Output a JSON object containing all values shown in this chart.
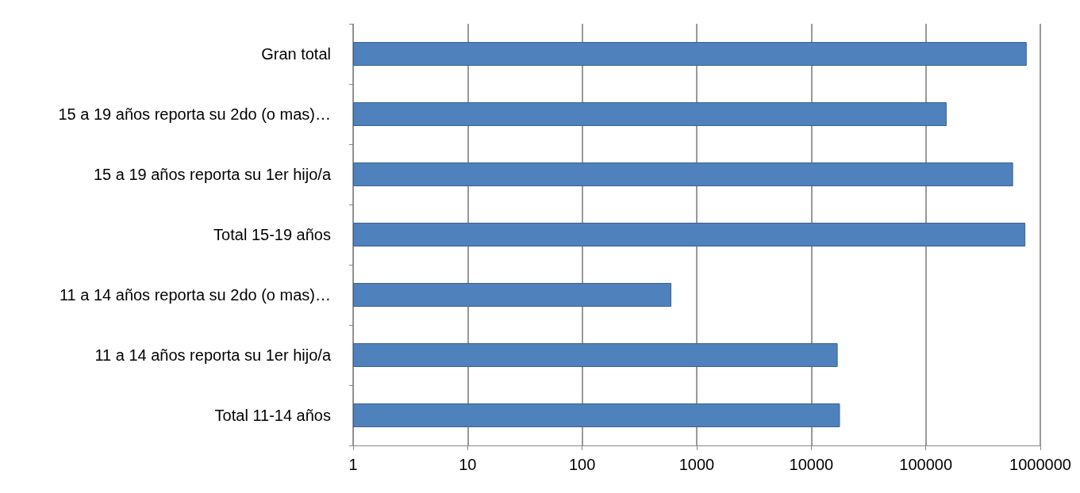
{
  "chart_data": {
    "type": "bar",
    "orientation": "horizontal",
    "log": "x",
    "grid": "x",
    "categories": [
      "Gran total",
      "15 a 19 años reporta su 2do (o mas)…",
      "15 a 19 años reporta su 1er hijo/a",
      "Total 15-19 años",
      "11 a 14 años reporta su 2do (o mas)…",
      "11 a 14 años reporta su 1er hijo/a",
      "Total 11-14 años"
    ],
    "values": [
      760000,
      152000,
      578000,
      740000,
      600,
      17000,
      17800
    ],
    "color": "#4f81bd",
    "xlim": [
      1,
      1000000
    ],
    "xticks": [
      1,
      10,
      100,
      1000,
      10000,
      100000,
      1000000
    ]
  }
}
